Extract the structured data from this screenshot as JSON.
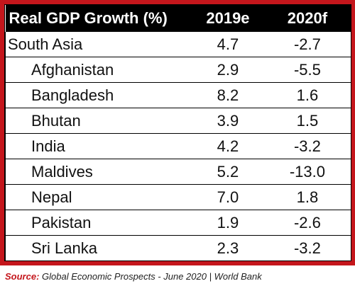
{
  "chart_data": {
    "type": "table",
    "columns": [
      "Real GDP Growth (%)",
      "2019e",
      "2020f"
    ],
    "rows": [
      {
        "name": "South Asia",
        "level": "region",
        "y2019e": "4.7",
        "y2020f": "-2.7"
      },
      {
        "name": "Afghanistan",
        "level": "country",
        "y2019e": "2.9",
        "y2020f": "-5.5"
      },
      {
        "name": "Bangladesh",
        "level": "country",
        "y2019e": "8.2",
        "y2020f": "1.6"
      },
      {
        "name": "Bhutan",
        "level": "country",
        "y2019e": "3.9",
        "y2020f": "1.5"
      },
      {
        "name": "India",
        "level": "country",
        "y2019e": "4.2",
        "y2020f": "-3.2"
      },
      {
        "name": "Maldives",
        "level": "country",
        "y2019e": "5.2",
        "y2020f": "-13.0"
      },
      {
        "name": "Nepal",
        "level": "country",
        "y2019e": "7.0",
        "y2020f": "1.8"
      },
      {
        "name": "Pakistan",
        "level": "country",
        "y2019e": "1.9",
        "y2020f": "-2.6"
      },
      {
        "name": "Sri Lanka",
        "level": "country",
        "y2019e": "2.3",
        "y2020f": "-3.2"
      }
    ]
  },
  "source": {
    "label": "Source:",
    "text": " Global Economic Prospects - June 2020 | World Bank"
  },
  "colors": {
    "frame": "#c4161c",
    "header_bg": "#000000",
    "header_text": "#ffffff"
  }
}
